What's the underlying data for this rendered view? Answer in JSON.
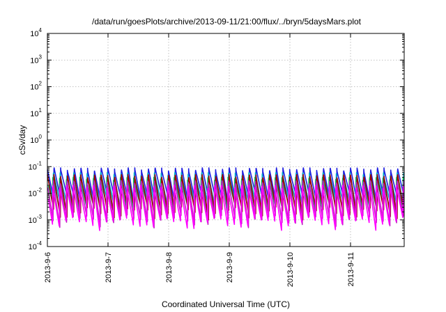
{
  "chart_data": {
    "type": "line",
    "title": "/data/run/goesPlots/archive/2013-09-11/21:00/flux/../bryn/5daysMars.plot",
    "xlabel": "Coordinated Universal Time (UTC)",
    "ylabel": "cSv/day",
    "yscale": "log",
    "ylim": [
      0.0001,
      10000
    ],
    "yticks": [
      {
        "exp": "-4",
        "value": 0.0001
      },
      {
        "exp": "-3",
        "value": 0.001
      },
      {
        "exp": "-2",
        "value": 0.01
      },
      {
        "exp": "-1",
        "value": 0.1
      },
      {
        "exp": "0",
        "value": 1
      },
      {
        "exp": "1",
        "value": 10
      },
      {
        "exp": "2",
        "value": 100
      },
      {
        "exp": "3",
        "value": 1000
      },
      {
        "exp": "4",
        "value": 10000
      }
    ],
    "ytick_base": "10",
    "xlim": [
      "2013-09-06",
      "2013-09-11 21:00"
    ],
    "xticks": [
      "2013-9-6",
      "2013-9-7",
      "2013-9-8",
      "2013-9-9",
      "2013-9-10",
      "2013-9-11"
    ],
    "grid": true,
    "oscillation_cycles_per_day": 9,
    "series": [
      {
        "color": "#2020e0",
        "peak": 0.09,
        "trough": 0.006
      },
      {
        "color": "#00b0c8",
        "peak": 0.06,
        "trough": 0.004
      },
      {
        "color": "#00c060",
        "peak": 0.04,
        "trough": 0.003
      },
      {
        "color": "#a00000",
        "peak": 0.05,
        "trough": 0.002
      },
      {
        "color": "#c020c0",
        "peak": 0.03,
        "trough": 0.001
      },
      {
        "color": "#ff00ff",
        "peak": 0.02,
        "trough": 0.0008
      }
    ]
  }
}
